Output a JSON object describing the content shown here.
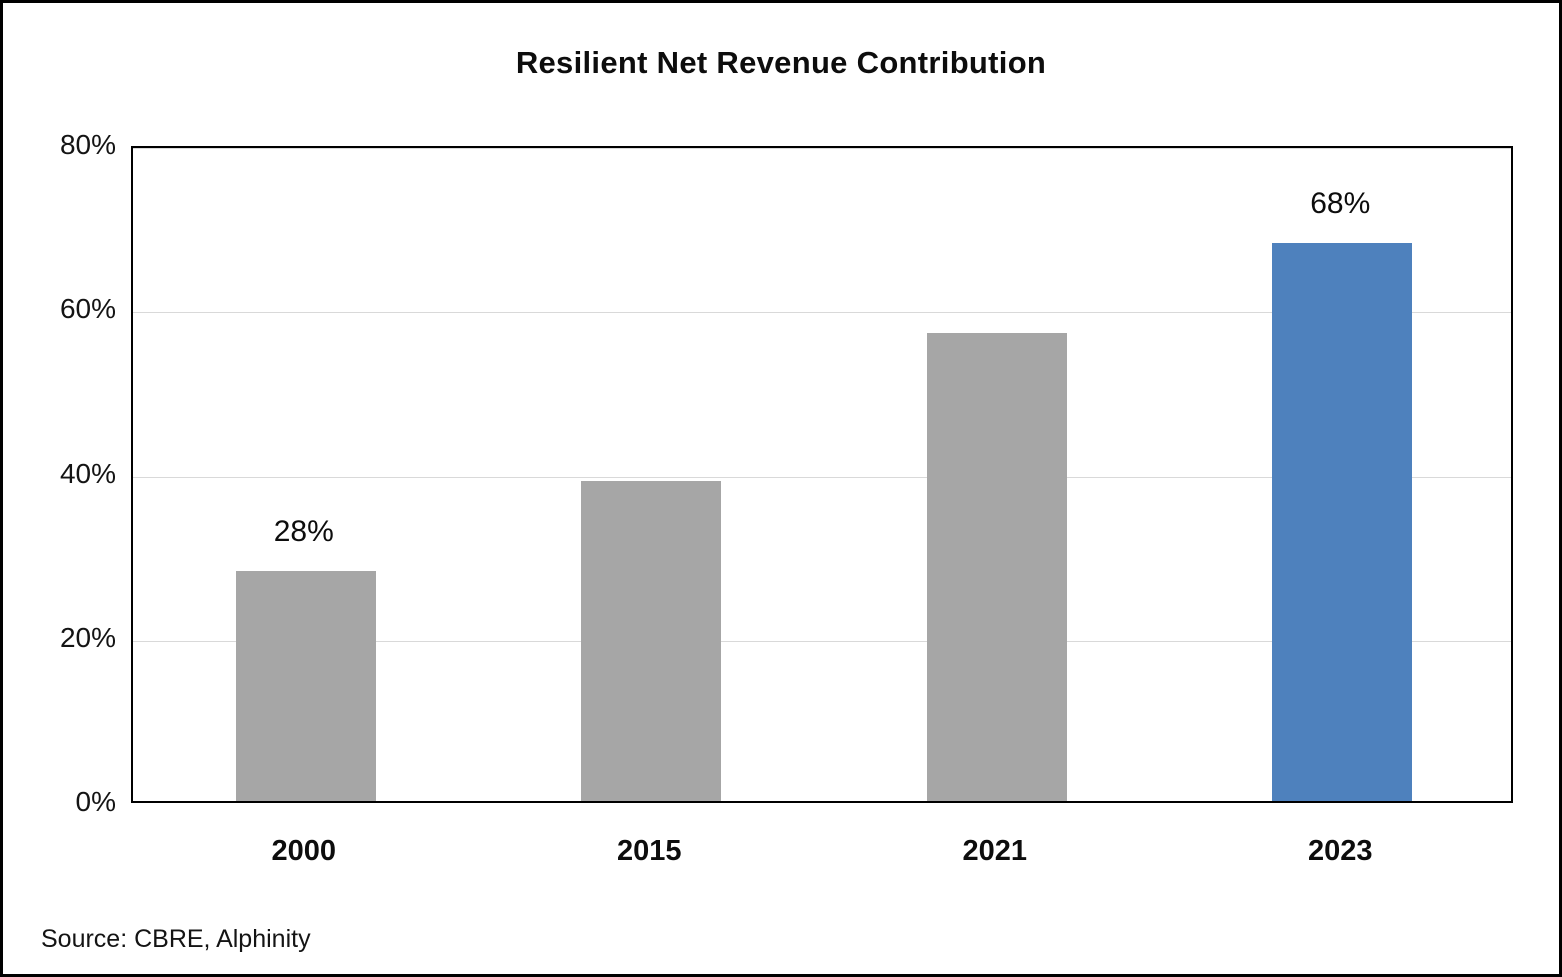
{
  "chart_data": {
    "type": "bar",
    "title": "Resilient Net Revenue Contribution",
    "categories": [
      "2000",
      "2015",
      "2021",
      "2023"
    ],
    "values": [
      28,
      39,
      57,
      68
    ],
    "data_labels": [
      "28%",
      null,
      null,
      "68%"
    ],
    "ylim": [
      0,
      80
    ],
    "yticks": [
      0,
      20,
      40,
      60,
      80
    ],
    "ytick_labels": [
      "0%",
      "20%",
      "40%",
      "60%",
      "80%"
    ],
    "grid": true,
    "legend": "none",
    "bar_colors": [
      "#A6A6A6",
      "#A6A6A6",
      "#A6A6A6",
      "#4E81BD"
    ],
    "gridline_color": "#D9D9D9",
    "highlight_color": "#4E81BD",
    "source": "Source: CBRE, Alphinity"
  }
}
